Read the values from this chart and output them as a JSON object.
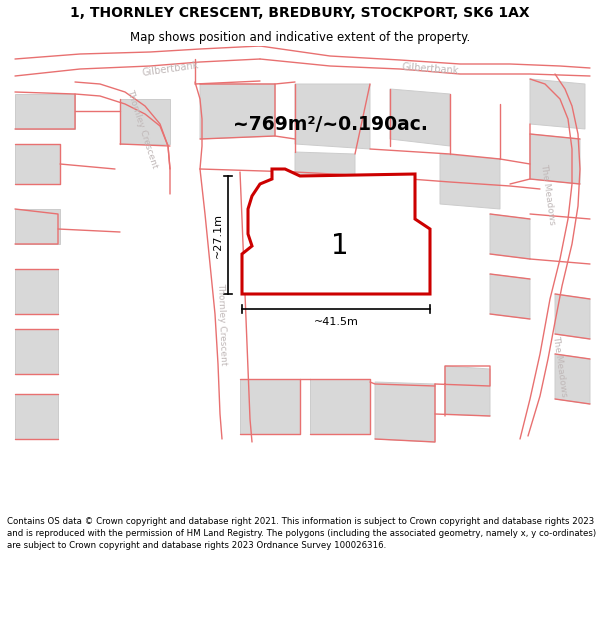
{
  "title": "1, THORNLEY CRESCENT, BREDBURY, STOCKPORT, SK6 1AX",
  "subtitle": "Map shows position and indicative extent of the property.",
  "footer": "Contains OS data © Crown copyright and database right 2021. This information is subject to Crown copyright and database rights 2023 and is reproduced with the permission of HM Land Registry. The polygons (including the associated geometry, namely x, y co-ordinates) are subject to Crown copyright and database rights 2023 Ordnance Survey 100026316.",
  "area_label": "~769m²/~0.190ac.",
  "plot_number": "1",
  "dim_width": "~41.5m",
  "dim_height": "~27.1m",
  "map_bg": "#ffffff",
  "building_fill": "#d8d8d8",
  "building_edge": "#cccccc",
  "road_line_color": "#e87070",
  "boundary_color": "#cc0000",
  "boundary_lw": 2.2,
  "label_color": "#c0b8b8",
  "title_fontsize": 10,
  "subtitle_fontsize": 8.5,
  "footer_fontsize": 6.2
}
